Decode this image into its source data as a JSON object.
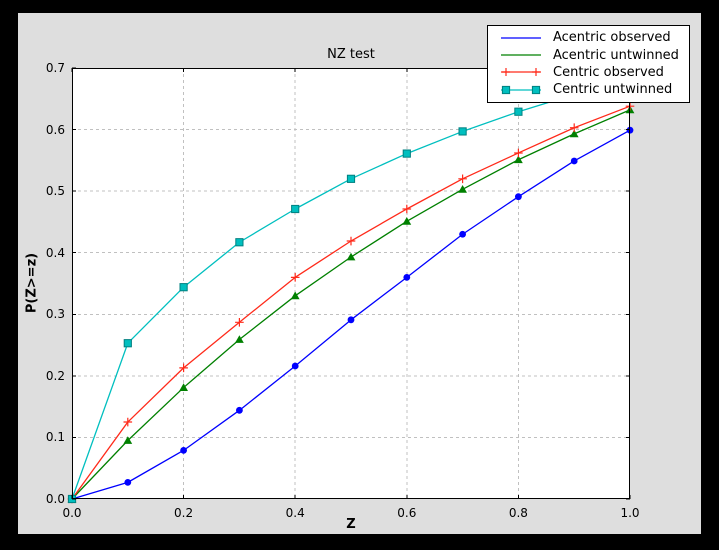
{
  "colors": {
    "window_bg": "#000000",
    "figure_bg": "#dedede",
    "plot_bg": "#ffffff",
    "grid": "#c0c0c0",
    "spine": "#000000",
    "text": "#000000"
  },
  "chart_data": {
    "type": "line",
    "title": "NZ test",
    "xlabel": "Z",
    "ylabel": "P(Z>=z)",
    "xlim": [
      0.0,
      1.0
    ],
    "ylim": [
      0.0,
      0.7
    ],
    "x_tick_labels": [
      "0.0",
      "0.2",
      "0.4",
      "0.6",
      "0.8",
      "1.0"
    ],
    "y_tick_labels": [
      "0.0",
      "0.1",
      "0.2",
      "0.3",
      "0.4",
      "0.5",
      "0.6",
      "0.7"
    ],
    "grid": true,
    "grid_style": "dashed",
    "legend_position": "upper right",
    "x": [
      0.0,
      0.1,
      0.2,
      0.3,
      0.4,
      0.5,
      0.6,
      0.7,
      0.8,
      0.9,
      1.0
    ],
    "series": [
      {
        "name": "Acentric observed",
        "color": "#0000ff",
        "marker": "circle",
        "legend_marker": false,
        "values": [
          0.0,
          0.027,
          0.079,
          0.144,
          0.216,
          0.291,
          0.36,
          0.43,
          0.491,
          0.549,
          0.599
        ]
      },
      {
        "name": "Acentric untwinned",
        "color": "#008000",
        "marker": "triangle",
        "legend_marker": false,
        "values": [
          0.0,
          0.095,
          0.181,
          0.259,
          0.33,
          0.393,
          0.451,
          0.503,
          0.551,
          0.593,
          0.632
        ]
      },
      {
        "name": "Centric observed",
        "color": "#ff2a1a",
        "marker": "plus",
        "legend_marker": true,
        "values": [
          0.0,
          0.125,
          0.213,
          0.287,
          0.36,
          0.419,
          0.471,
          0.52,
          0.562,
          0.603,
          0.638
        ]
      },
      {
        "name": "Centric untwinned",
        "color": "#00bfbf",
        "marker": "square",
        "marker_edge": "#008080",
        "legend_marker": true,
        "values": [
          0.0,
          0.253,
          0.344,
          0.417,
          0.471,
          0.52,
          0.561,
          0.597,
          0.629,
          0.657,
          0.683
        ]
      }
    ]
  }
}
